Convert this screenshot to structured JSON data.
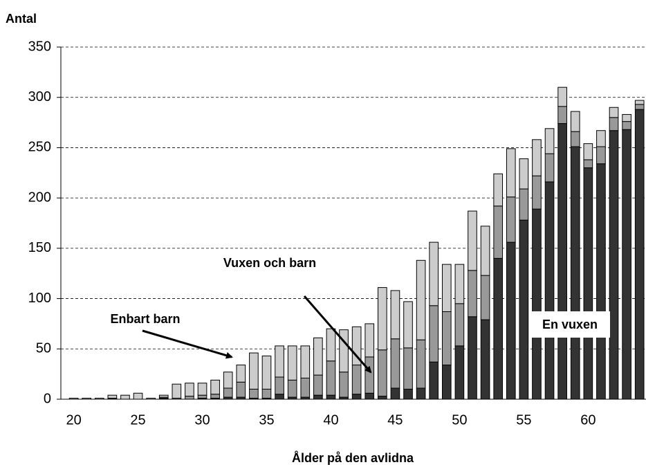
{
  "chart_data": {
    "type": "stacked_bar",
    "ylabel": "Antal",
    "xlabel": "Ålder på den avlidna",
    "x": [
      20,
      21,
      22,
      23,
      24,
      25,
      26,
      27,
      28,
      29,
      30,
      31,
      32,
      33,
      34,
      35,
      36,
      37,
      38,
      39,
      40,
      41,
      42,
      43,
      44,
      45,
      46,
      47,
      48,
      49,
      50,
      51,
      52,
      53,
      54,
      55,
      56,
      57,
      58,
      59,
      60,
      61,
      62,
      63,
      64
    ],
    "xlim": [
      19,
      64.5
    ],
    "xticks": [
      20,
      25,
      30,
      35,
      40,
      45,
      50,
      55,
      60
    ],
    "ylim": [
      0,
      350
    ],
    "yticks": [
      0,
      50,
      100,
      150,
      200,
      250,
      300,
      350
    ],
    "grid": true,
    "series": [
      {
        "name": "En vuxen",
        "color": "#333333",
        "values": [
          0,
          0,
          0,
          1,
          0,
          0,
          0,
          1,
          0,
          0,
          1,
          1,
          2,
          2,
          1,
          1,
          5,
          2,
          2,
          4,
          4,
          2,
          5,
          6,
          3,
          11,
          10,
          11,
          37,
          34,
          53,
          82,
          79,
          140,
          156,
          178,
          189,
          216,
          274,
          251,
          230,
          234,
          267,
          268,
          288
        ]
      },
      {
        "name": "Vuxen och barn",
        "color": "#999999",
        "values": [
          0,
          0,
          0,
          0,
          0,
          0,
          0,
          1,
          1,
          3,
          3,
          4,
          9,
          15,
          9,
          9,
          17,
          17,
          19,
          20,
          34,
          25,
          29,
          36,
          46,
          49,
          41,
          48,
          56,
          53,
          42,
          46,
          44,
          52,
          45,
          31,
          33,
          28,
          17,
          15,
          8,
          17,
          13,
          8,
          5
        ]
      },
      {
        "name": "Enbart barn",
        "color": "#cccccc",
        "values": [
          1,
          1,
          1,
          3,
          4,
          6,
          1,
          2,
          14,
          13,
          12,
          14,
          16,
          17,
          36,
          33,
          31,
          34,
          32,
          37,
          32,
          42,
          38,
          33,
          62,
          48,
          46,
          79,
          63,
          47,
          39,
          59,
          49,
          32,
          48,
          30,
          36,
          25,
          19,
          20,
          16,
          16,
          10,
          7,
          4
        ]
      }
    ]
  }
}
